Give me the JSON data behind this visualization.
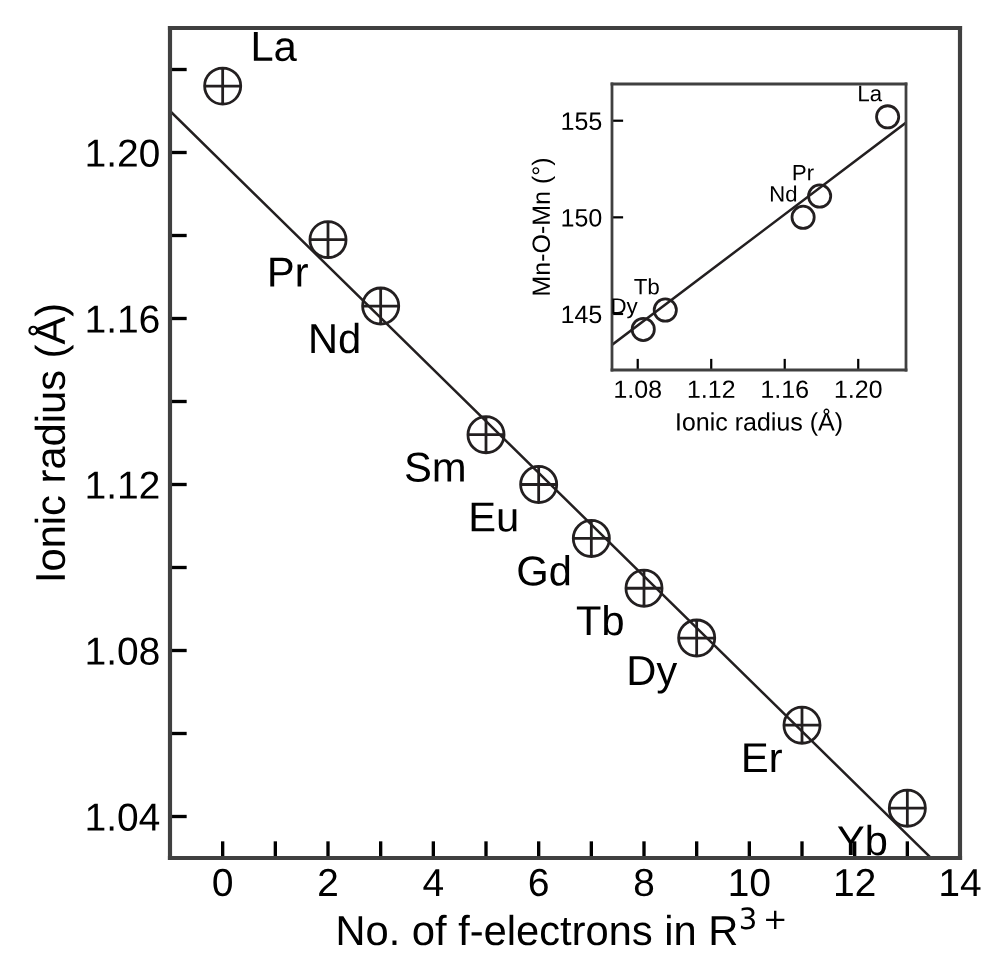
{
  "chart_data": [
    {
      "type": "scatter",
      "xlabel": "No. of f-electrons in R$^{3+}$",
      "ylabel": "Ionic radius (Å)",
      "grid": false,
      "xlim": [
        -1,
        14
      ],
      "ylim": [
        1.03,
        1.23
      ],
      "xticks": [
        {
          "value": -1,
          "label": null
        },
        0,
        {
          "value": 1,
          "label": null
        },
        2,
        {
          "value": 3,
          "label": null
        },
        4,
        {
          "value": 5,
          "label": null
        },
        6,
        {
          "value": 7,
          "label": null
        },
        8,
        {
          "value": 9,
          "label": null
        },
        10,
        {
          "value": 11,
          "label": null
        },
        12,
        {
          "value": 13,
          "label": null
        },
        14
      ],
      "yticks": [
        {
          "value": 1.04,
          "label": "1.04"
        },
        {
          "value": 1.06,
          "label": null
        },
        {
          "value": 1.08,
          "label": "1.08"
        },
        {
          "value": 1.1,
          "label": null
        },
        {
          "value": 1.12,
          "label": "1.12"
        },
        {
          "value": 1.14,
          "label": null
        },
        {
          "value": 1.16,
          "label": "1.16"
        },
        {
          "value": 1.18,
          "label": null
        },
        {
          "value": 1.2,
          "label": "1.20"
        },
        {
          "value": 1.22,
          "label": null
        }
      ],
      "series": [
        {
          "color": "#231f20",
          "marker": "cross",
          "x": [
            0,
            2,
            3,
            5,
            6,
            7,
            8,
            9,
            11,
            13
          ],
          "values": [
            1.216,
            1.179,
            1.163,
            1.132,
            1.12,
            1.107,
            1.095,
            1.083,
            1.062,
            1.042
          ]
        },
        {
          "type": "line",
          "color": "#231f20",
          "x": [
            -1,
            13.45
          ],
          "values": [
            1.21,
            1.03
          ]
        }
      ],
      "annotations": [
        {
          "text": "La",
          "x": 0,
          "y": 1.216
        },
        {
          "text": "Pr",
          "x": 2,
          "y": 1.179
        },
        {
          "text": "Nd",
          "x": 3,
          "y": 1.163
        },
        {
          "text": "Sm",
          "x": 5,
          "y": 1.132
        },
        {
          "text": "Eu",
          "x": 6,
          "y": 1.12
        },
        {
          "text": "Gd",
          "x": 7,
          "y": 1.107
        },
        {
          "text": "Tb",
          "x": 8,
          "y": 1.095
        },
        {
          "text": "Dy",
          "x": 9,
          "y": 1.083
        },
        {
          "text": "Er",
          "x": 11,
          "y": 1.062
        },
        {
          "text": "Yb",
          "x": 13,
          "y": 1.042
        }
      ]
    },
    {
      "type": "scatter",
      "xlabel": "Ionic radius (Å)",
      "ylabel": "Mn-O-Mn (°)",
      "grid": false,
      "xlim": [
        1.066,
        1.226
      ],
      "ylim": [
        142.1,
        156.9
      ],
      "xticks": [
        {
          "value": 1.08,
          "label": "1.08"
        },
        {
          "value": 1.12,
          "label": "1.12"
        },
        {
          "value": 1.16,
          "label": "1.16"
        },
        {
          "value": 1.2,
          "label": "1.20"
        }
      ],
      "yticks": [
        145,
        150,
        155
      ],
      "series": [
        {
          "color": "#231f20",
          "marker": "circle",
          "x": [
            1.216,
            1.179,
            1.17,
            1.095,
            1.083
          ],
          "values": [
            155.2,
            151.1,
            150.0,
            145.2,
            144.2
          ]
        },
        {
          "type": "line",
          "color": "#231f20",
          "x": [
            1.066,
            1.226
          ],
          "values": [
            143.4,
            154.9
          ]
        }
      ],
      "annotations": [
        {
          "text": "La",
          "x": 1.216,
          "y": 155.2
        },
        {
          "text": "Pr",
          "x": 1.179,
          "y": 151.1
        },
        {
          "text": "Nd",
          "x": 1.17,
          "y": 150.0
        },
        {
          "text": "Tb",
          "x": 1.095,
          "y": 145.2
        },
        {
          "text": "Dy",
          "x": 1.083,
          "y": 144.2
        }
      ]
    }
  ]
}
